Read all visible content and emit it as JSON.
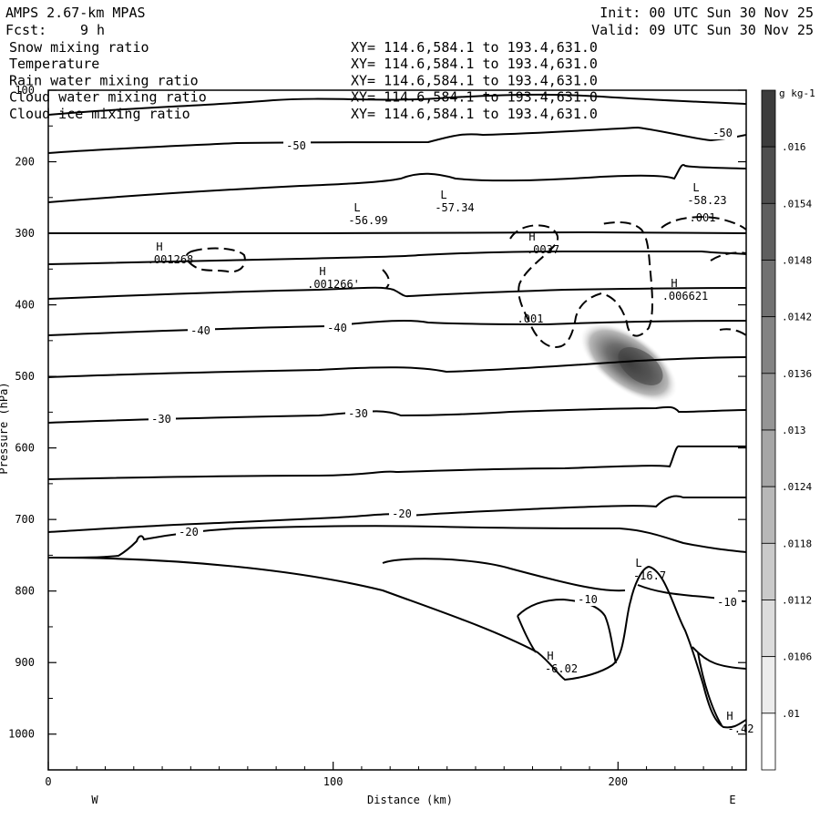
{
  "header": {
    "title": "AMPS 2.67-km MPAS",
    "fcst_label": "Fcst:",
    "fcst_value": "9 h",
    "init": "Init: 00 UTC Sun 30 Nov 25",
    "valid": "Valid: 09 UTC Sun 30 Nov 25"
  },
  "fields": [
    {
      "name": "Snow mixing ratio",
      "xy": "XY= 114.6,584.1 to 193.4,631.0",
      "color": "#000000"
    },
    {
      "name": "Temperature",
      "xy": "XY= 114.6,584.1 to 193.4,631.0",
      "color": "#000000"
    },
    {
      "name": "Rain water mixing ratio",
      "xy": "XY= 114.6,584.1 to 193.4,631.0",
      "color": "#d00000"
    },
    {
      "name": "Cloud water mixing ratio",
      "xy": "XY= 114.6,584.1 to 193.4,631.0",
      "color": "#0000c8"
    },
    {
      "name": "Cloud ice mixing ratio",
      "xy": "XY= 114.6,584.1 to 193.4,631.0",
      "color": "#000000"
    }
  ],
  "chart_data": {
    "type": "contour",
    "xlabel": "Distance (km)",
    "ylabel": "Pressure (hPa)",
    "xlim": [
      0,
      245
    ],
    "ylim": [
      1050,
      100
    ],
    "x_ticks": [
      "0",
      "100",
      "200"
    ],
    "y_ticks": [
      "100",
      "200",
      "300",
      "400",
      "500",
      "600",
      "700",
      "800",
      "900",
      "1000"
    ],
    "left_end": "W",
    "right_end": "E",
    "colorbar": {
      "unit": "g kg-1",
      "labels": [
        ".016",
        ".0154",
        ".0148",
        ".0142",
        ".0136",
        ".013",
        ".0124",
        ".0118",
        ".0112",
        ".0106",
        ".01"
      ]
    },
    "temperature_labels": [
      "-50",
      "-50",
      "-40",
      "-40",
      "-30",
      "-30",
      "-20",
      "-20",
      "-10",
      "-10"
    ],
    "extrema": [
      {
        "kind": "L",
        "value": "-56.99"
      },
      {
        "kind": "L",
        "value": "-57.34"
      },
      {
        "kind": "L",
        "value": "-58.23"
      },
      {
        "kind": "L",
        "value": "-16.7"
      },
      {
        "kind": "H",
        "value": "-6.02"
      },
      {
        "kind": "H",
        "value": "-.42"
      },
      {
        "kind": "H",
        "value": ".001268"
      },
      {
        "kind": "H",
        "value": ".001266'"
      },
      {
        "kind": "H",
        "value": ".0037"
      },
      {
        "kind": "H",
        "value": ".006621"
      }
    ],
    "cloud_labels": [
      ".001",
      ".001"
    ]
  }
}
